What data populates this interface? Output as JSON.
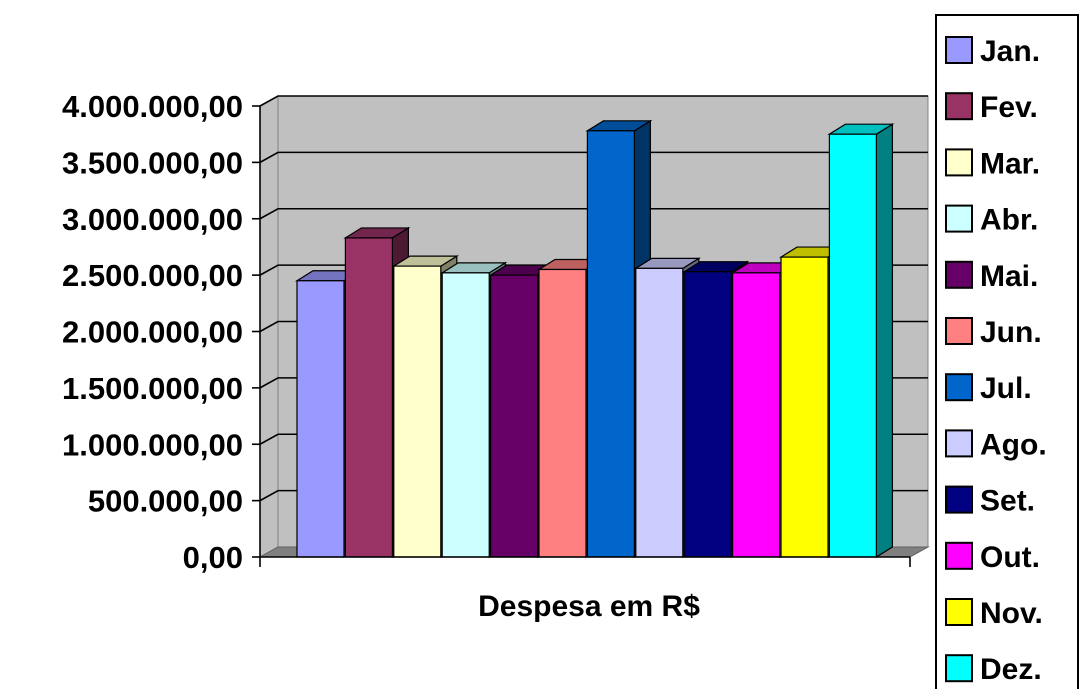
{
  "chart_data": {
    "type": "bar",
    "style": "3d-clustered-column",
    "xlabel": "Despesa em R$",
    "ylabel": "",
    "ylim": [
      0,
      4000000
    ],
    "y_ticks": [
      {
        "value": 0,
        "label": "0,00"
      },
      {
        "value": 500000,
        "label": "500.000,00"
      },
      {
        "value": 1000000,
        "label": "1.000.000,00"
      },
      {
        "value": 1500000,
        "label": "1.500.000,00"
      },
      {
        "value": 2000000,
        "label": "2.000.000,00"
      },
      {
        "value": 2500000,
        "label": "2.500.000,00"
      },
      {
        "value": 3000000,
        "label": "3.000.000,00"
      },
      {
        "value": 3500000,
        "label": "3.500.000,00"
      },
      {
        "value": 4000000,
        "label": "4.000.000,00"
      }
    ],
    "grid": true,
    "legend_position": "right",
    "series": [
      {
        "name": "Jan.",
        "value": 2450000,
        "color": "#9999FF"
      },
      {
        "name": "Fev.",
        "value": 2830000,
        "color": "#993366"
      },
      {
        "name": "Mar.",
        "value": 2580000,
        "color": "#FFFFCC"
      },
      {
        "name": "Abr.",
        "value": 2520000,
        "color": "#CCFFFF"
      },
      {
        "name": "Mai.",
        "value": 2500000,
        "color": "#660066"
      },
      {
        "name": "Jun.",
        "value": 2550000,
        "color": "#FF8080"
      },
      {
        "name": "Jul.",
        "value": 3780000,
        "color": "#0066CC"
      },
      {
        "name": "Ago.",
        "value": 2560000,
        "color": "#CCCCFF"
      },
      {
        "name": "Set.",
        "value": 2530000,
        "color": "#000080"
      },
      {
        "name": "Out.",
        "value": 2520000,
        "color": "#FF00FF"
      },
      {
        "name": "Nov.",
        "value": 2660000,
        "color": "#FFFF00"
      },
      {
        "name": "Dez.",
        "value": 3750000,
        "color": "#00FFFF"
      }
    ],
    "colors": {
      "wall": "#C0C0C0",
      "floor": "#808080",
      "gridline": "#000000"
    }
  }
}
